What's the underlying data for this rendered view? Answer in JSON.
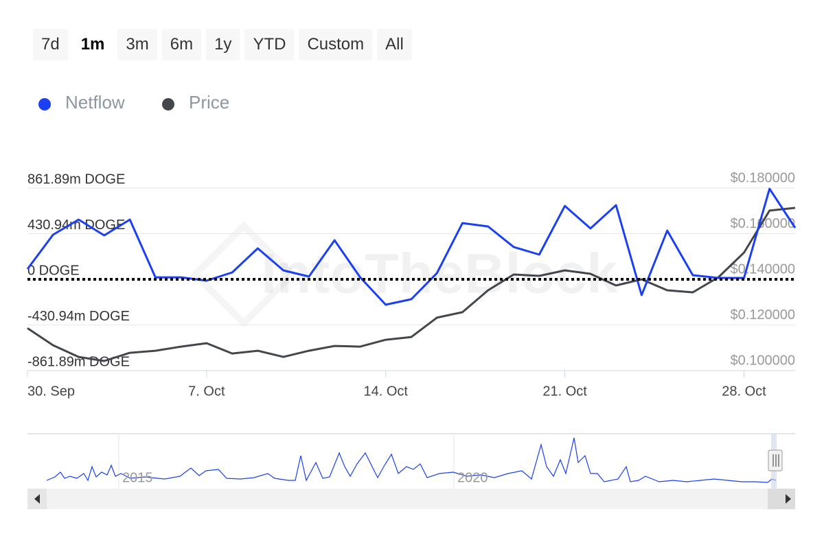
{
  "range_buttons": [
    "7d",
    "1m",
    "3m",
    "6m",
    "1y",
    "YTD",
    "Custom",
    "All"
  ],
  "range_selected": 1,
  "chart_data": {
    "type": "line",
    "watermark": "IntoTheBlock",
    "legend": "top-left",
    "grid": true,
    "categories": [
      "30. Sep",
      null,
      null,
      null,
      null,
      null,
      null,
      "7. Oct",
      null,
      null,
      null,
      null,
      null,
      null,
      "14. Oct",
      null,
      null,
      null,
      null,
      null,
      null,
      "21. Oct",
      null,
      null,
      null,
      null,
      null,
      null,
      "28. Oct",
      null,
      null
    ],
    "ylim": [
      -861.89,
      861.89
    ],
    "yticks": [
      {
        "value": 861.89,
        "label": "861.89m DOGE"
      },
      {
        "value": 430.94,
        "label": "430.94m DOGE"
      },
      {
        "value": 0,
        "label": "0 DOGE"
      },
      {
        "value": -430.94,
        "label": "-430.94m DOGE"
      },
      {
        "value": -861.89,
        "label": "-861.89m DOGE"
      }
    ],
    "y2lim": [
      0.1,
      0.18
    ],
    "y2ticks": [
      {
        "value": 0.18,
        "label": "$0.180000"
      },
      {
        "value": 0.16,
        "label": "$0.160000"
      },
      {
        "value": 0.14,
        "label": "$0.140000"
      },
      {
        "value": 0.12,
        "label": "$0.120000"
      },
      {
        "value": 0.1,
        "label": "$0.100000"
      }
    ],
    "series": [
      {
        "name": "Netflow",
        "color": "#1a3ff5",
        "values": [
          97,
          421,
          564,
          415,
          564,
          19,
          19,
          -13,
          65,
          292,
          84,
          26,
          369,
          19,
          -240,
          -188,
          58,
          531,
          499,
          305,
          233,
          693,
          480,
          700,
          -149,
          460,
          39,
          13,
          13,
          855,
          486
        ]
      },
      {
        "name": "Price",
        "color": "#43474c",
        "axis": "y2",
        "values": [
          0.1186,
          0.1111,
          0.106,
          0.1042,
          0.1078,
          0.1087,
          0.1105,
          0.112,
          0.1075,
          0.1087,
          0.106,
          0.1087,
          0.1108,
          0.1105,
          0.1135,
          0.1147,
          0.1232,
          0.1256,
          0.1352,
          0.1421,
          0.1415,
          0.1439,
          0.1424,
          0.1373,
          0.14,
          0.1352,
          0.1343,
          0.1409,
          0.1517,
          0.1701,
          0.1713
        ]
      }
    ],
    "navigator_labels": [
      "2015",
      "2020"
    ]
  }
}
